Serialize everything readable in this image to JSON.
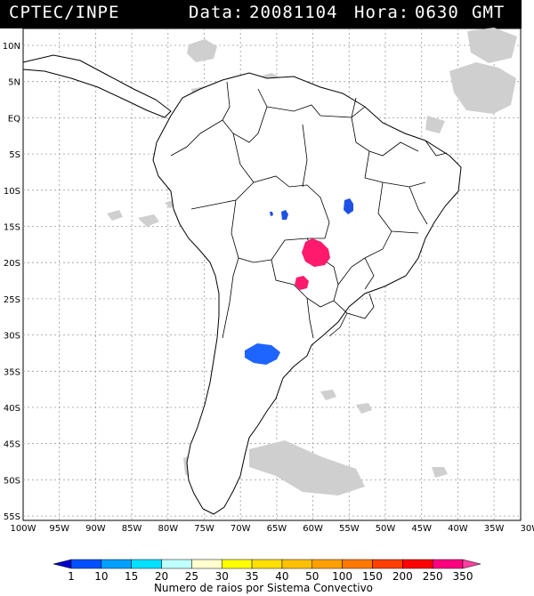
{
  "header": {
    "source": "CPTEC/INPE",
    "date_label": "Data:",
    "date_value": "20081104",
    "hour_label": "Hora:",
    "hour_value": "0630",
    "tz": "GMT"
  },
  "map": {
    "lat_labels": [
      "10N",
      "5N",
      "EQ",
      "5S",
      "10S",
      "15S",
      "20S",
      "25S",
      "30S",
      "35S",
      "40S",
      "45S",
      "50S",
      "55S"
    ],
    "lon_labels": [
      "100W",
      "95W",
      "90W",
      "85W",
      "80W",
      "75W",
      "70W",
      "65W",
      "60W",
      "55W",
      "50W",
      "45W",
      "40W",
      "35W",
      "30W"
    ]
  },
  "colorbar": {
    "ticks": [
      "1",
      "10",
      "15",
      "20",
      "25",
      "30",
      "35",
      "40",
      "50",
      "100",
      "150",
      "200",
      "250",
      "350"
    ],
    "colors": [
      "#0000cc",
      "#0050ff",
      "#00a0ff",
      "#00e0ff",
      "#c0ffff",
      "#ffffd0",
      "#ffff00",
      "#ffe000",
      "#ffc000",
      "#ffa000",
      "#ff7800",
      "#ff4000",
      "#ff0000",
      "#ff0080",
      "#ff40a0"
    ],
    "title": "Numero de raios por Sistema Convectivo"
  },
  "systems": [
    {
      "id": "s1",
      "color": "#1e50e6"
    },
    {
      "id": "s2",
      "color": "#1e50e6"
    },
    {
      "id": "s3",
      "color": "#ff1a6e"
    },
    {
      "id": "s4",
      "color": "#ff1a6e"
    },
    {
      "id": "s5",
      "color": "#1e64ff"
    }
  ]
}
